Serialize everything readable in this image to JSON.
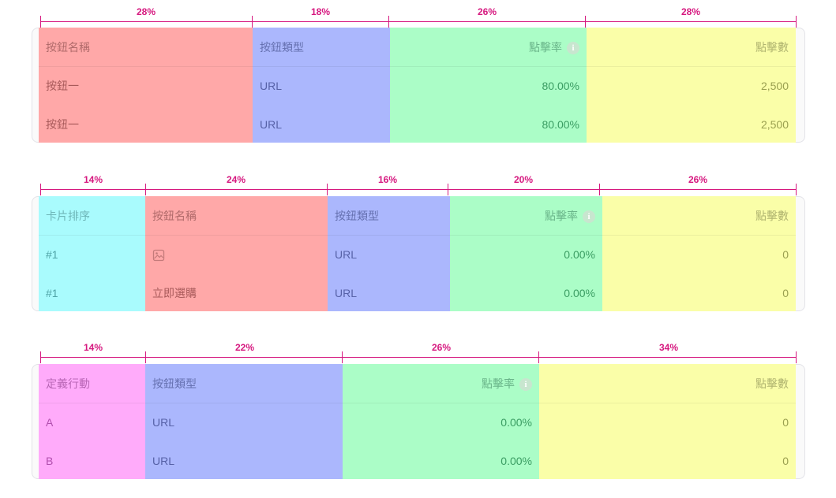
{
  "table1": {
    "widths": [
      "28%",
      "18%",
      "26%",
      "28%"
    ],
    "headers": [
      "按鈕名稱",
      "按鈕類型",
      "點擊率",
      "點擊數"
    ],
    "rows": [
      [
        "按鈕一",
        "URL",
        "80.00%",
        "2,500"
      ],
      [
        "按鈕一",
        "URL",
        "80.00%",
        "2,500"
      ]
    ]
  },
  "table2": {
    "widths": [
      "14%",
      "24%",
      "16%",
      "20%",
      "26%"
    ],
    "headers": [
      "卡片排序",
      "按鈕名稱",
      "按鈕類型",
      "點擊率",
      "點擊數"
    ],
    "rows": [
      [
        "#1",
        "",
        "URL",
        "0.00%",
        "0"
      ],
      [
        "#1",
        "立即選購",
        "URL",
        "0.00%",
        "0"
      ]
    ]
  },
  "table3": {
    "widths": [
      "14%",
      "22%",
      "26%",
      "34%"
    ],
    "headers": [
      "定義行動",
      "按鈕類型",
      "點擊率",
      "點擊數"
    ],
    "rows": [
      [
        "A",
        "URL",
        "0.00%",
        "0"
      ],
      [
        "B",
        "URL",
        "0.00%",
        "0"
      ]
    ]
  },
  "icons": {
    "info": "info-icon",
    "image": "image-placeholder-icon"
  },
  "colors": {
    "annotation": "#d6187f",
    "red": "#ffa8a8",
    "blue": "#abb7fd",
    "green": "#abfdc7",
    "yellow": "#fafea8",
    "cyan": "#a9fbfd",
    "pink": "#ffabfa"
  }
}
